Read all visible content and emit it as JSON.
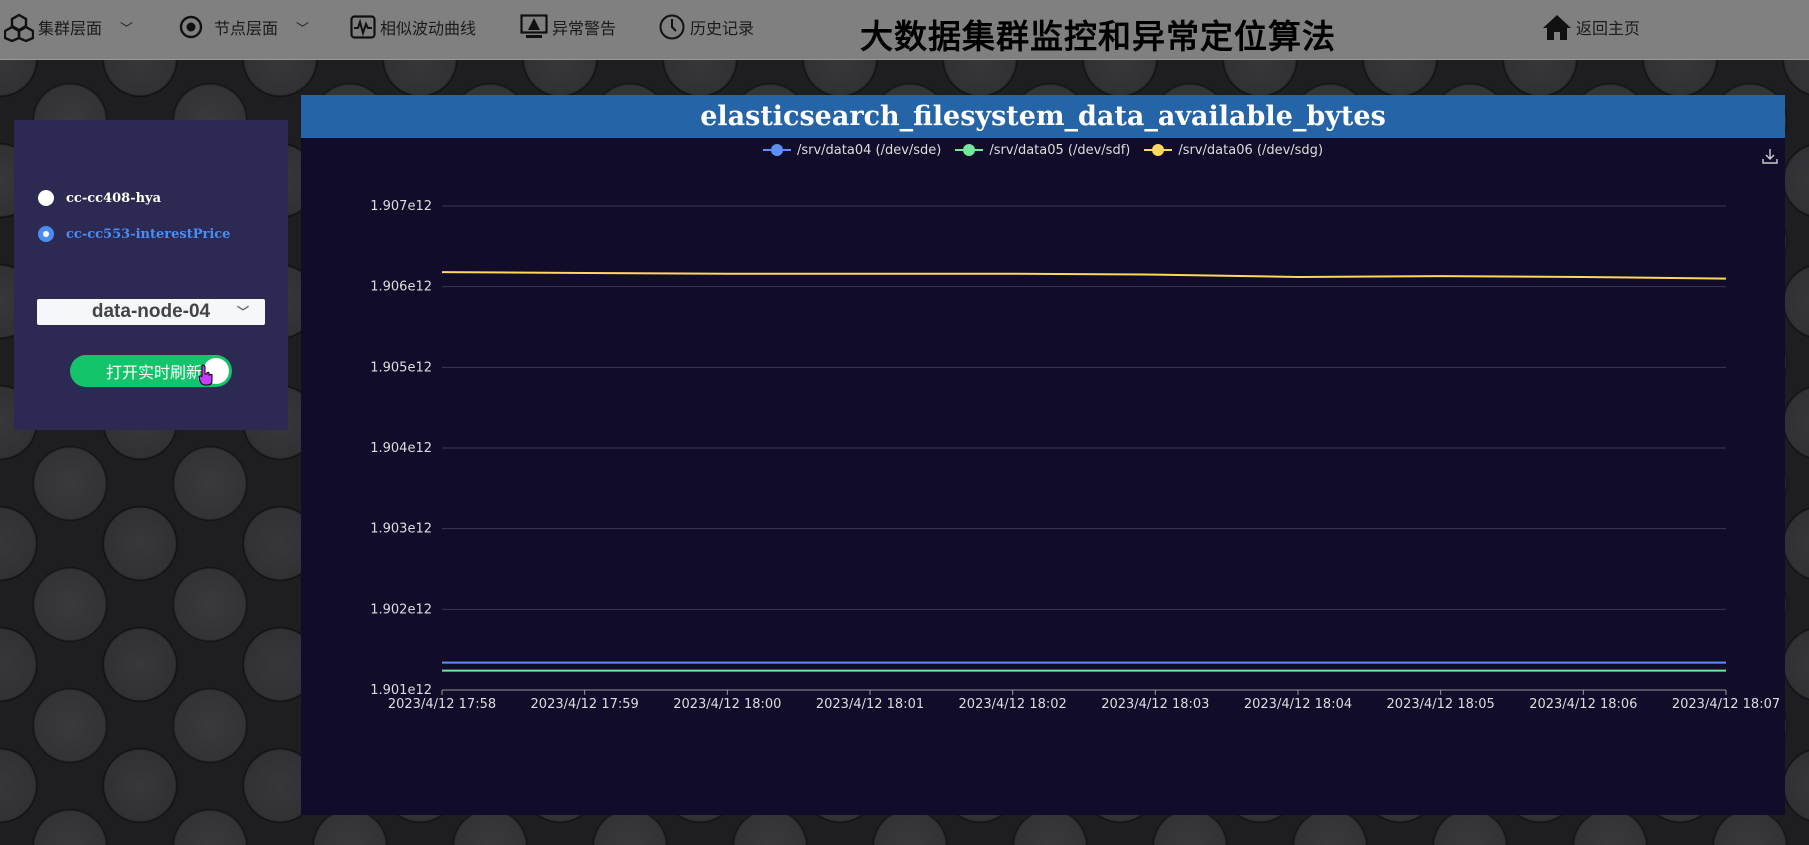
{
  "nav": {
    "cluster": "集群层面",
    "node": "节点层面",
    "similar": "相似波动曲线",
    "alert": "异常警告",
    "history": "历史记录",
    "home": "返回主页"
  },
  "app_title": "大数据集群监控和异常定位算法",
  "panel": {
    "radios": [
      {
        "label": "cc-cc408-hya",
        "selected": false
      },
      {
        "label": "cc-cc553-interestPrice",
        "selected": true
      }
    ],
    "node_select": "data-node-04",
    "toggle_label": "打开实时刷新"
  },
  "colors": {
    "series1": "#5b8ff9",
    "series2": "#73e89a",
    "series3": "#ffd85c",
    "selected_text": "#4a8cf5"
  },
  "chart_data": {
    "type": "line",
    "title": "elasticsearch_filesystem_data_available_bytes",
    "x": [
      "2023/4/12 17:58",
      "2023/4/12 17:59",
      "2023/4/12 18:00",
      "2023/4/12 18:01",
      "2023/4/12 18:02",
      "2023/4/12 18:03",
      "2023/4/12 18:04",
      "2023/4/12 18:05",
      "2023/4/12 18:06",
      "2023/4/12 18:07"
    ],
    "yticks": [
      "1.901e12",
      "1.902e12",
      "1.903e12",
      "1.904e12",
      "1.905e12",
      "1.906e12",
      "1.907e12"
    ],
    "ylim": [
      1901000000000.0,
      1907000000000.0
    ],
    "series": [
      {
        "name": "/srv/data04 (/dev/sde)",
        "values": [
          1901340000000,
          1901340000000,
          1901340000000,
          1901340000000,
          1901340000000,
          1901340000000,
          1901340000000,
          1901340000000,
          1901340000000,
          1901340000000
        ]
      },
      {
        "name": "/srv/data05 (/dev/sdf)",
        "values": [
          1901240000000,
          1901240000000,
          1901240000000,
          1901240000000,
          1901240000000,
          1901240000000,
          1901240000000,
          1901240000000,
          1901240000000,
          1901240000000
        ]
      },
      {
        "name": "/srv/data06 (/dev/sdg)",
        "values": [
          1906180000000,
          1906170000000,
          1906160000000,
          1906160000000,
          1906160000000,
          1906150000000,
          1906120000000,
          1906130000000,
          1906120000000,
          1906100000000
        ]
      }
    ],
    "legend": "top-center",
    "grid": true
  }
}
